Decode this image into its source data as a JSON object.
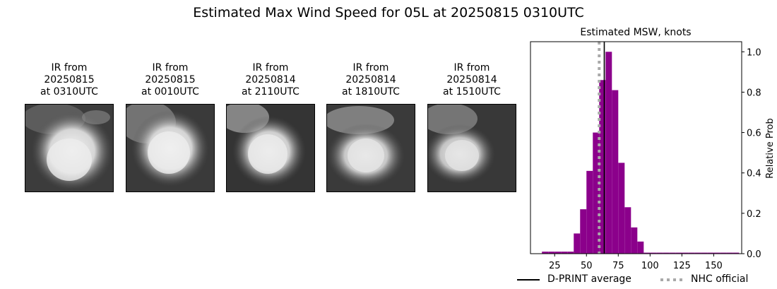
{
  "figure": {
    "title": "Estimated Max Wind Speed for 05L at 20250815 0310UTC"
  },
  "ir_panels": [
    {
      "l1": "IR from",
      "l2": "20250815",
      "l3": "at 0310UTC"
    },
    {
      "l1": "IR from",
      "l2": "20250815",
      "l3": "at 0010UTC"
    },
    {
      "l1": "IR from",
      "l2": "20250814",
      "l3": "at 2110UTC"
    },
    {
      "l1": "IR from",
      "l2": "20250814",
      "l3": "at 1810UTC"
    },
    {
      "l1": "IR from",
      "l2": "20250814",
      "l3": "at 1510UTC"
    }
  ],
  "chart_data": {
    "type": "bar",
    "title": "Estimated MSW, knots",
    "xlabel": "",
    "ylabel": "Relative Prob",
    "xlim": [
      6,
      172
    ],
    "ylim": [
      0,
      1.05
    ],
    "xticks": [
      25,
      50,
      75,
      100,
      125,
      150
    ],
    "yticks": [
      "0.0",
      "0.2",
      "0.4",
      "0.6",
      "0.8",
      "1.0"
    ],
    "y_axis_side": "right",
    "bar_color": "#8b008b",
    "bin_width": 5,
    "bins": [
      {
        "x0": 15,
        "value": 0.01
      },
      {
        "x0": 20,
        "value": 0.01
      },
      {
        "x0": 25,
        "value": 0.01
      },
      {
        "x0": 30,
        "value": 0.01
      },
      {
        "x0": 35,
        "value": 0.01
      },
      {
        "x0": 40,
        "value": 0.1
      },
      {
        "x0": 45,
        "value": 0.22
      },
      {
        "x0": 50,
        "value": 0.41
      },
      {
        "x0": 55,
        "value": 0.6
      },
      {
        "x0": 60,
        "value": 0.86
      },
      {
        "x0": 65,
        "value": 1.0
      },
      {
        "x0": 70,
        "value": 0.81
      },
      {
        "x0": 75,
        "value": 0.45
      },
      {
        "x0": 80,
        "value": 0.23
      },
      {
        "x0": 85,
        "value": 0.13
      },
      {
        "x0": 90,
        "value": 0.06
      },
      {
        "x0": 95,
        "value": 0.005
      },
      {
        "x0": 100,
        "value": 0.005
      },
      {
        "x0": 105,
        "value": 0.005
      },
      {
        "x0": 110,
        "value": 0.005
      },
      {
        "x0": 115,
        "value": 0.005
      },
      {
        "x0": 120,
        "value": 0.005
      },
      {
        "x0": 125,
        "value": 0.005
      },
      {
        "x0": 130,
        "value": 0.005
      },
      {
        "x0": 135,
        "value": 0.005
      },
      {
        "x0": 140,
        "value": 0.005
      },
      {
        "x0": 145,
        "value": 0.005
      },
      {
        "x0": 150,
        "value": 0.005
      },
      {
        "x0": 155,
        "value": 0.005
      },
      {
        "x0": 160,
        "value": 0.005
      },
      {
        "x0": 165,
        "value": 0.005
      }
    ],
    "lines": [
      {
        "name": "D-PRINT average",
        "x": 64,
        "color": "#000000",
        "style": "solid"
      },
      {
        "name": "NHC official",
        "x": 60,
        "color": "#a9a9a9",
        "style": "dotted"
      }
    ],
    "legend": {
      "placement": "bottom",
      "entries": [
        "D-PRINT average",
        "NHC official"
      ]
    }
  }
}
